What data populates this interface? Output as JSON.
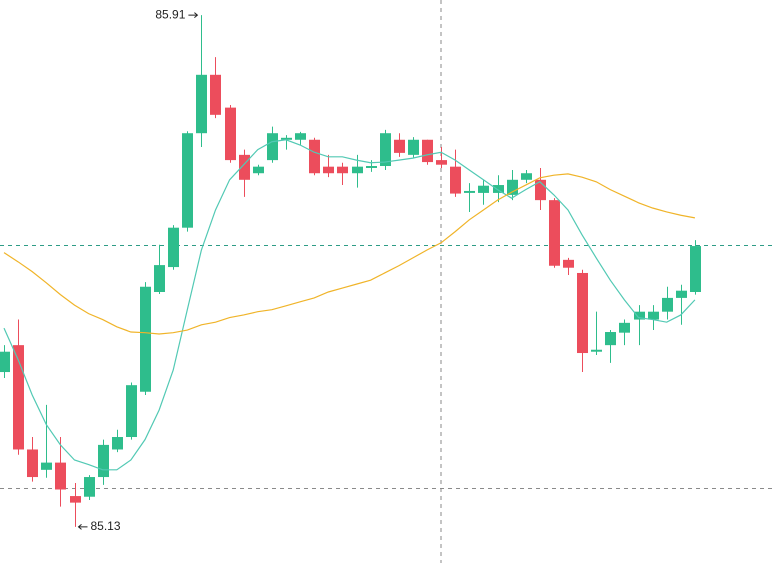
{
  "chart_data": {
    "type": "candlestick",
    "categories": [
      null,
      null,
      null,
      null,
      null,
      null,
      null,
      null,
      null,
      null,
      null,
      null,
      null,
      null,
      null,
      null,
      null,
      null,
      null,
      null,
      null,
      null,
      null,
      null,
      null,
      null,
      null,
      null,
      null,
      null,
      null,
      null,
      null,
      null,
      null,
      null,
      null,
      null,
      null,
      null,
      null,
      null,
      null,
      null,
      null,
      null,
      null,
      null,
      null,
      null
    ],
    "open": [
      85.366,
      85.407,
      85.248,
      85.217,
      85.228,
      85.177,
      85.176,
      85.206,
      85.248,
      85.267,
      85.336,
      85.488,
      85.526,
      85.586,
      85.73,
      85.819,
      85.769,
      85.697,
      85.669,
      85.689,
      85.72,
      85.72,
      85.72,
      85.679,
      85.679,
      85.669,
      85.677,
      85.68,
      85.72,
      85.697,
      85.72,
      85.689,
      85.679,
      85.639,
      85.639,
      85.639,
      85.636,
      85.659,
      85.659,
      85.628,
      85.537,
      85.517,
      85.397,
      85.407,
      85.426,
      85.446,
      85.446,
      85.458,
      85.479,
      85.488
    ],
    "high": [
      85.407,
      85.446,
      85.267,
      85.316,
      85.267,
      85.197,
      85.209,
      85.263,
      85.278,
      85.35,
      85.503,
      85.56,
      85.59,
      85.733,
      85.91,
      85.846,
      85.773,
      85.705,
      85.682,
      85.74,
      85.727,
      85.732,
      85.723,
      85.697,
      85.685,
      85.697,
      85.689,
      85.735,
      85.73,
      85.724,
      85.72,
      85.709,
      85.705,
      85.654,
      85.659,
      85.666,
      85.674,
      85.674,
      85.677,
      85.631,
      85.54,
      85.522,
      85.458,
      85.43,
      85.446,
      85.468,
      85.468,
      85.496,
      85.499,
      85.567
    ],
    "low": [
      85.357,
      85.24,
      85.199,
      85.205,
      85.161,
      85.13,
      85.171,
      85.194,
      85.244,
      85.263,
      85.331,
      85.485,
      85.522,
      85.58,
      85.709,
      85.753,
      85.685,
      85.633,
      85.666,
      85.685,
      85.705,
      85.712,
      85.666,
      85.663,
      85.651,
      85.647,
      85.671,
      85.674,
      85.694,
      85.692,
      85.682,
      85.677,
      85.633,
      85.61,
      85.621,
      85.625,
      85.628,
      85.654,
      85.613,
      85.525,
      85.514,
      85.366,
      85.392,
      85.38,
      85.407,
      85.407,
      85.43,
      85.446,
      85.438,
      85.484
    ],
    "close": [
      85.397,
      85.248,
      85.206,
      85.228,
      85.187,
      85.167,
      85.206,
      85.255,
      85.267,
      85.346,
      85.496,
      85.529,
      85.586,
      85.73,
      85.819,
      85.758,
      85.689,
      85.659,
      85.679,
      85.73,
      85.723,
      85.73,
      85.669,
      85.669,
      85.669,
      85.679,
      85.68,
      85.73,
      85.7,
      85.72,
      85.686,
      85.682,
      85.638,
      85.642,
      85.65,
      85.651,
      85.659,
      85.669,
      85.628,
      85.528,
      85.525,
      85.395,
      85.4,
      85.427,
      85.441,
      85.458,
      85.458,
      85.479,
      85.49,
      85.558
    ],
    "up_color": "#2ebd8c",
    "down_color": "#ec4d5c",
    "moving_averages": [
      {
        "color": "#52c9b4",
        "values": [
          85.433,
          85.385,
          85.331,
          85.286,
          85.255,
          85.232,
          85.225,
          85.217,
          85.217,
          85.232,
          85.263,
          85.308,
          85.369,
          85.461,
          85.552,
          85.613,
          85.659,
          85.682,
          85.705,
          85.717,
          85.72,
          85.712,
          85.701,
          85.694,
          85.694,
          85.689,
          85.685,
          85.686,
          85.689,
          85.692,
          85.697,
          85.701,
          85.689,
          85.674,
          85.659,
          85.644,
          85.631,
          85.644,
          85.656,
          85.636,
          85.613,
          85.575,
          85.54,
          85.506,
          85.476,
          85.449,
          85.446,
          85.442,
          85.453,
          85.476
        ]
      },
      {
        "color": "#f0b429",
        "values": [
          85.548,
          85.534,
          85.519,
          85.502,
          85.484,
          85.468,
          85.455,
          85.446,
          85.435,
          85.427,
          85.426,
          85.424,
          85.426,
          85.43,
          85.438,
          85.442,
          85.449,
          85.453,
          85.458,
          85.461,
          85.467,
          85.473,
          85.479,
          85.488,
          85.494,
          85.5,
          85.506,
          85.517,
          85.528,
          85.54,
          85.552,
          85.563,
          85.58,
          85.598,
          85.613,
          85.628,
          85.64,
          85.651,
          85.662,
          85.666,
          85.668,
          85.663,
          85.656,
          85.644,
          85.634,
          85.624,
          85.616,
          85.61,
          85.605,
          85.601
        ]
      }
    ],
    "ylim": [
      85.075,
      85.933
    ],
    "annotations": [
      {
        "text": "85.91"
      },
      {
        "text": "85.13"
      }
    ]
  }
}
